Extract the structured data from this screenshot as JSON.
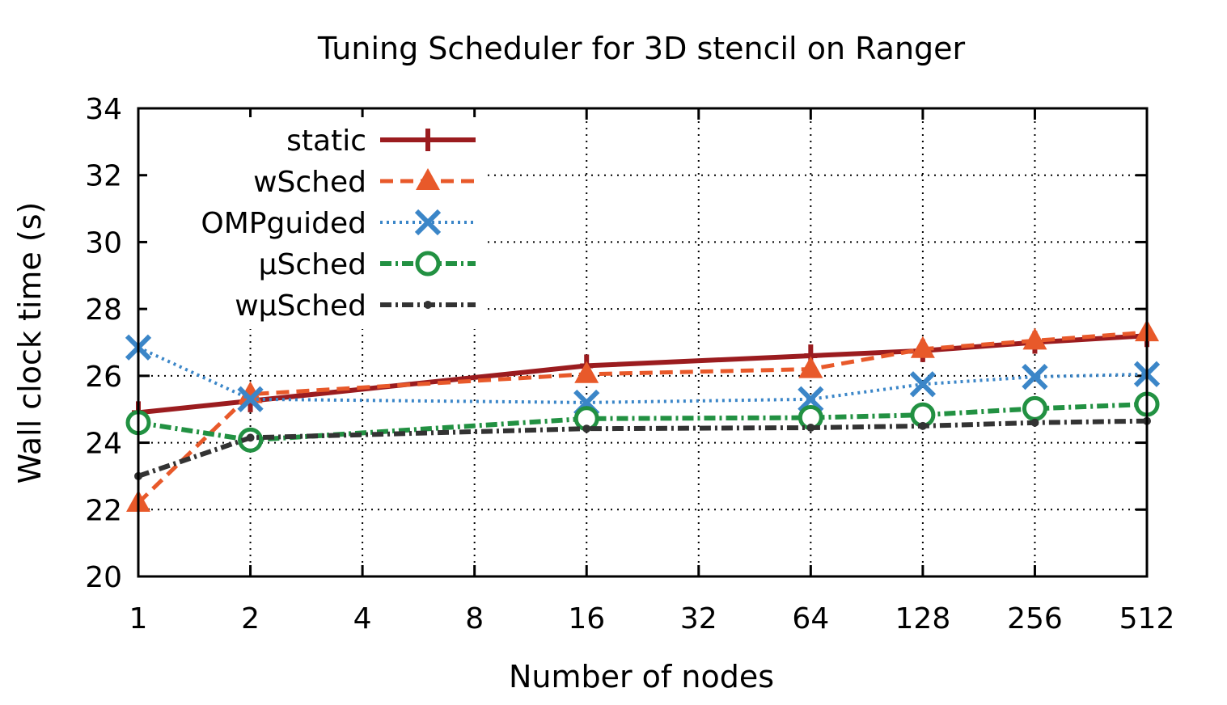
{
  "chart_data": {
    "type": "line",
    "title": "Tuning Scheduler for 3D stencil on Ranger",
    "xlabel": "Number of nodes",
    "ylabel": "Wall clock time (s)",
    "x": [
      1,
      2,
      4,
      8,
      16,
      32,
      64,
      128,
      256,
      512
    ],
    "x_tick_labels": [
      "1",
      "2",
      "4",
      "8",
      "16",
      "32",
      "64",
      "128",
      "256",
      "512"
    ],
    "x_scale": "log2",
    "ylim": [
      20,
      34
    ],
    "y_ticks": [
      20,
      22,
      24,
      26,
      28,
      30,
      32,
      34
    ],
    "grid": true,
    "legend_position": "top-left",
    "series": [
      {
        "name": "static",
        "color": "#9b1c1f",
        "dash": "solid",
        "marker": "plus",
        "points": [
          [
            1,
            24.9
          ],
          [
            2,
            25.25
          ],
          [
            16,
            26.3
          ],
          [
            64,
            26.6
          ],
          [
            128,
            26.75
          ],
          [
            256,
            27.0
          ],
          [
            512,
            27.2
          ]
        ]
      },
      {
        "name": "wSched",
        "color": "#e8592a",
        "dash": "dashed",
        "marker": "triangle",
        "points": [
          [
            1,
            22.2
          ],
          [
            2,
            25.45
          ],
          [
            16,
            26.05
          ],
          [
            64,
            26.2
          ],
          [
            128,
            26.8
          ],
          [
            256,
            27.05
          ],
          [
            512,
            27.3
          ]
        ]
      },
      {
        "name": "OMPguided",
        "color": "#3b86c8",
        "dash": "dotted",
        "marker": "x",
        "points": [
          [
            1,
            26.85
          ],
          [
            2,
            25.3
          ],
          [
            16,
            25.2
          ],
          [
            64,
            25.3
          ],
          [
            128,
            25.75
          ],
          [
            256,
            25.97
          ],
          [
            512,
            26.05
          ]
        ]
      },
      {
        "name": "µSched",
        "color": "#229142",
        "dash": "dashdot",
        "marker": "circle",
        "points": [
          [
            1,
            24.6
          ],
          [
            2,
            24.08
          ],
          [
            16,
            24.72
          ],
          [
            64,
            24.75
          ],
          [
            128,
            24.83
          ],
          [
            256,
            25.02
          ],
          [
            512,
            25.15
          ]
        ]
      },
      {
        "name": "wµSched",
        "color": "#333333",
        "dash": "dashdot",
        "marker": "dot",
        "points": [
          [
            1,
            23.0
          ],
          [
            2,
            24.15
          ],
          [
            16,
            24.42
          ],
          [
            64,
            24.45
          ],
          [
            128,
            24.5
          ],
          [
            256,
            24.6
          ],
          [
            512,
            24.65
          ]
        ]
      }
    ]
  }
}
